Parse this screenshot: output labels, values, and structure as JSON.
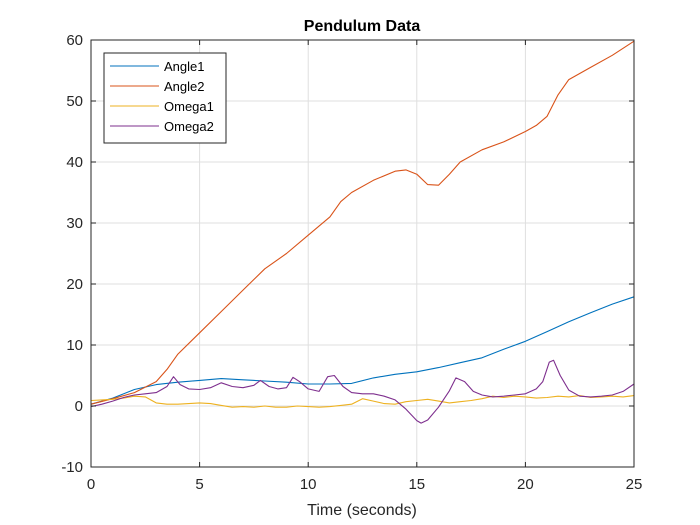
{
  "chart_data": {
    "type": "line",
    "title": "Pendulum Data",
    "xlabel": "Time (seconds)",
    "ylabel": "",
    "xlim": [
      0,
      25
    ],
    "ylim": [
      -10,
      60
    ],
    "xticks": [
      0,
      5,
      10,
      15,
      20,
      25
    ],
    "yticks": [
      -10,
      0,
      10,
      20,
      30,
      40,
      50,
      60
    ],
    "grid": true,
    "legend_position": "top-left",
    "series": [
      {
        "name": "Angle1",
        "color": "#0072BD",
        "x": [
          0,
          1,
          2,
          3,
          4,
          5,
          6,
          7,
          8,
          9,
          10,
          11,
          12,
          13,
          14,
          15,
          16,
          17,
          18,
          19,
          20,
          21,
          22,
          23,
          24,
          25
        ],
        "y": [
          0.3,
          1.3,
          2.7,
          3.5,
          3.9,
          4.2,
          4.5,
          4.3,
          4.1,
          3.9,
          3.6,
          3.6,
          3.7,
          4.6,
          5.2,
          5.6,
          6.3,
          7.1,
          7.9,
          9.3,
          10.6,
          12.2,
          13.8,
          15.3,
          16.7,
          17.9
        ]
      },
      {
        "name": "Angle2",
        "color": "#D95319",
        "x": [
          0,
          1,
          2,
          3,
          3.5,
          4,
          5,
          6,
          7,
          8,
          9,
          10,
          11,
          11.5,
          12,
          13,
          14,
          14.5,
          15,
          15.5,
          16,
          16.5,
          17,
          18,
          19,
          20,
          20.5,
          21,
          21.5,
          22,
          23,
          24,
          25
        ],
        "y": [
          0.3,
          1.2,
          2.2,
          4,
          6,
          8.5,
          12,
          15.5,
          19,
          22.5,
          25,
          28,
          31,
          33.5,
          35,
          37,
          38.5,
          38.7,
          38,
          36.3,
          36.2,
          38,
          40,
          42,
          43.3,
          45,
          46,
          47.5,
          51,
          53.5,
          55.5,
          57.5,
          59.8
        ]
      },
      {
        "name": "Omega1",
        "color": "#EDB120",
        "x": [
          0,
          0.5,
          1,
          1.5,
          2,
          2.5,
          3,
          3.5,
          4,
          4.5,
          5,
          5.5,
          6,
          6.5,
          7,
          7.5,
          8,
          8.5,
          9,
          9.5,
          10,
          10.5,
          11,
          11.5,
          12,
          12.5,
          13,
          13.5,
          14,
          14.5,
          15,
          15.5,
          16,
          16.5,
          17,
          17.5,
          18,
          18.5,
          19,
          19.5,
          20,
          20.5,
          21,
          21.5,
          22,
          22.5,
          23,
          23.5,
          24,
          24.5,
          25
        ],
        "y": [
          0.9,
          1.0,
          1.1,
          1.3,
          1.6,
          1.5,
          0.5,
          0.3,
          0.3,
          0.4,
          0.5,
          0.4,
          0.1,
          -0.2,
          -0.1,
          -0.2,
          0.0,
          -0.2,
          -0.2,
          0.0,
          -0.1,
          -0.2,
          -0.1,
          0.1,
          0.3,
          1.2,
          0.8,
          0.4,
          0.3,
          0.7,
          0.9,
          1.1,
          0.8,
          0.5,
          0.7,
          0.9,
          1.2,
          1.6,
          1.4,
          1.6,
          1.5,
          1.3,
          1.4,
          1.6,
          1.5,
          1.7,
          1.4,
          1.5,
          1.6,
          1.5,
          1.7
        ]
      },
      {
        "name": "Omega2",
        "color": "#7E2F8E",
        "x": [
          0,
          0.5,
          1,
          1.5,
          2,
          2.5,
          3,
          3.5,
          3.8,
          4.1,
          4.5,
          5,
          5.5,
          6,
          6.5,
          7,
          7.5,
          7.8,
          8.2,
          8.6,
          9,
          9.3,
          9.6,
          10,
          10.5,
          10.9,
          11.2,
          11.6,
          12,
          12.5,
          13,
          13.5,
          14,
          14.5,
          15,
          15.2,
          15.5,
          16,
          16.5,
          16.8,
          17.2,
          17.6,
          18,
          18.5,
          19,
          19.5,
          20,
          20.5,
          20.8,
          21.1,
          21.3,
          21.6,
          22,
          22.5,
          23,
          23.5,
          24,
          24.5,
          25
        ],
        "y": [
          -0.1,
          0.3,
          0.8,
          1.4,
          1.8,
          2.0,
          2.2,
          3.2,
          4.8,
          3.5,
          2.8,
          2.7,
          3.0,
          3.8,
          3.2,
          3.0,
          3.4,
          4.2,
          3.2,
          2.8,
          3.0,
          4.7,
          4.0,
          2.8,
          2.4,
          4.8,
          5.0,
          3.2,
          2.2,
          2.0,
          2.0,
          1.6,
          1.0,
          -0.5,
          -2.4,
          -2.8,
          -2.3,
          -0.2,
          2.5,
          4.6,
          4.0,
          2.4,
          1.8,
          1.5,
          1.6,
          1.8,
          2.0,
          2.8,
          4.0,
          7.2,
          7.5,
          5.0,
          2.6,
          1.6,
          1.5,
          1.6,
          1.8,
          2.4,
          3.6
        ]
      }
    ]
  }
}
